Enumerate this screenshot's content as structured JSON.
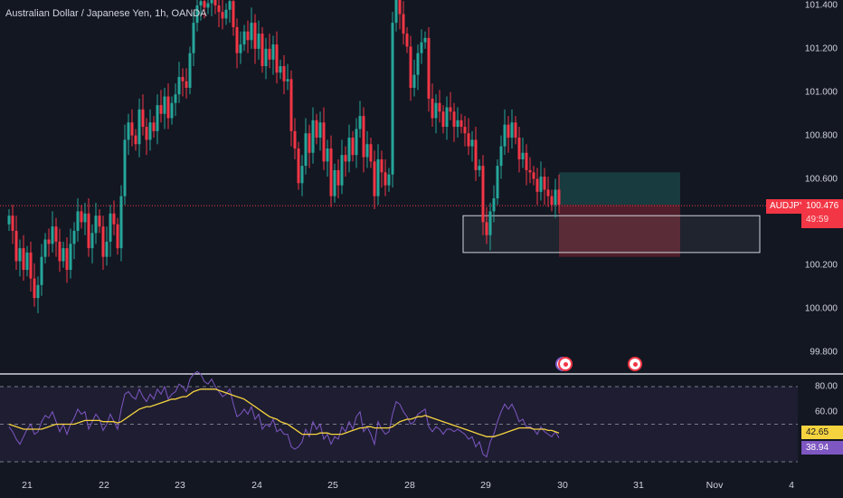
{
  "header": {
    "title": "Australian Dollar / Japanese Yen, 1h, OANDA"
  },
  "price_badge": {
    "symbol": "AUDJPY",
    "price": "100.476",
    "countdown": "49:59"
  },
  "rsi_badges": {
    "ma": "42.65",
    "rsi": "38.94"
  },
  "colors": {
    "up": "#26a69a",
    "down": "#f23645",
    "rsi": "#7e57c2",
    "rsi_ma": "#f5d33f",
    "background": "#131722"
  },
  "icons": [
    "event-marker-icon",
    "event-marker-icon",
    "event-marker-icon"
  ],
  "chart_data": {
    "type": "candlestick",
    "symbol": "AUDJPY",
    "timeframe": "1h",
    "x_ticks": [
      "21",
      "22",
      "23",
      "24",
      "25",
      "28",
      "29",
      "30",
      "31",
      "Nov",
      "4"
    ],
    "y_ticks": [
      "101.400",
      "101.200",
      "101.000",
      "100.800",
      "100.600",
      "100.400",
      "100.200",
      "100.000",
      "99.800"
    ],
    "ylim": [
      99.73,
      101.42
    ],
    "last_price": 100.476,
    "candles_close": [
      100.43,
      100.36,
      100.22,
      100.28,
      100.18,
      100.26,
      100.14,
      100.05,
      100.11,
      100.24,
      100.32,
      100.3,
      100.38,
      100.31,
      100.22,
      100.28,
      100.18,
      100.3,
      100.36,
      100.45,
      100.4,
      100.44,
      100.28,
      100.35,
      100.43,
      100.38,
      100.24,
      100.31,
      100.44,
      100.39,
      100.28,
      100.52,
      100.78,
      100.86,
      100.8,
      100.76,
      100.92,
      100.84,
      100.78,
      100.86,
      100.82,
      100.94,
      100.9,
      100.98,
      100.88,
      100.95,
      100.99,
      101.07,
      101.05,
      101.02,
      101.18,
      101.32,
      101.4,
      101.42,
      101.39,
      101.41,
      101.45,
      101.4,
      101.37,
      101.34,
      101.38,
      101.42,
      101.3,
      101.18,
      101.22,
      101.28,
      101.24,
      101.32,
      101.2,
      101.27,
      101.12,
      101.2,
      101.15,
      101.22,
      101.09,
      101.12,
      101.05,
      101.06,
      100.82,
      100.74,
      100.58,
      100.66,
      100.81,
      100.72,
      100.87,
      100.79,
      100.86,
      100.68,
      100.74,
      100.52,
      100.64,
      100.57,
      100.71,
      100.68,
      100.79,
      100.71,
      100.83,
      100.89,
      100.7,
      100.76,
      100.68,
      100.52,
      100.69,
      100.63,
      100.57,
      100.62,
      101.32,
      101.44,
      101.36,
      101.27,
      101.21,
      101.02,
      101.08,
      101.18,
      101.23,
      101.25,
      100.97,
      100.88,
      100.95,
      100.91,
      100.84,
      100.93,
      100.91,
      100.84,
      100.87,
      100.84,
      100.81,
      100.75,
      100.78,
      100.64,
      100.66,
      100.4,
      100.34,
      100.45,
      100.51,
      100.66,
      100.75,
      100.85,
      100.79,
      100.86,
      100.79,
      100.69,
      100.72,
      100.64,
      100.63,
      100.6,
      100.54,
      100.61,
      100.55,
      100.52,
      100.48,
      100.55,
      100.48
    ],
    "rsi_ticks": [
      "80.00",
      "60.00"
    ],
    "rsi_last": 38.94,
    "rsi_ma_last": 42.65,
    "rsi_values": [
      48,
      44,
      38,
      34,
      40,
      46,
      50,
      42,
      44,
      52,
      57,
      55,
      60,
      52,
      44,
      50,
      42,
      50,
      55,
      62,
      58,
      60,
      46,
      52,
      58,
      54,
      45,
      50,
      58,
      52,
      46,
      62,
      74,
      76,
      72,
      70,
      78,
      72,
      68,
      74,
      70,
      78,
      74,
      80,
      70,
      74,
      76,
      82,
      80,
      76,
      86,
      90,
      92,
      90,
      84,
      82,
      86,
      80,
      76,
      72,
      74,
      78,
      66,
      56,
      58,
      62,
      58,
      64,
      54,
      58,
      46,
      50,
      48,
      54,
      44,
      46,
      42,
      42,
      32,
      30,
      32,
      36,
      46,
      40,
      52,
      46,
      50,
      38,
      42,
      34,
      40,
      38,
      48,
      44,
      52,
      46,
      56,
      60,
      44,
      48,
      42,
      34,
      52,
      46,
      42,
      44,
      58,
      68,
      66,
      60,
      56,
      50,
      52,
      58,
      60,
      62,
      48,
      44,
      48,
      46,
      42,
      46,
      46,
      44,
      46,
      44,
      42,
      38,
      40,
      32,
      36,
      26,
      24,
      36,
      42,
      52,
      60,
      66,
      62,
      66,
      60,
      52,
      54,
      48,
      48,
      46,
      42,
      48,
      44,
      42,
      40,
      44,
      39
    ],
    "rsi_ma_values": [
      50,
      49,
      48,
      47,
      46,
      46,
      46,
      46,
      46,
      46,
      47,
      48,
      49,
      50,
      50,
      50,
      50,
      50,
      50,
      51,
      52,
      53,
      53,
      53,
      53,
      53,
      52,
      52,
      52,
      52,
      51,
      52,
      54,
      56,
      58,
      60,
      62,
      63,
      64,
      64,
      65,
      66,
      67,
      68,
      69,
      70,
      70,
      71,
      72,
      72,
      74,
      76,
      77,
      78,
      78,
      78,
      78,
      78,
      77,
      76,
      75,
      74,
      73,
      72,
      71,
      70,
      68,
      66,
      64,
      62,
      60,
      58,
      56,
      55,
      54,
      52,
      51,
      50,
      48,
      46,
      44,
      42,
      42,
      42,
      42,
      42,
      43,
      43,
      43,
      42,
      42,
      42,
      42,
      43,
      44,
      45,
      46,
      47,
      47,
      48,
      48,
      47,
      47,
      47,
      47,
      47,
      48,
      50,
      52,
      53,
      54,
      54,
      55,
      56,
      56,
      57,
      56,
      55,
      54,
      53,
      52,
      51,
      50,
      49,
      48,
      47,
      46,
      45,
      44,
      43,
      42,
      41,
      40,
      40,
      40,
      41,
      42,
      43,
      44,
      45,
      46,
      47,
      47,
      47,
      47,
      46,
      46,
      46,
      46,
      45,
      45,
      44,
      43
    ]
  }
}
